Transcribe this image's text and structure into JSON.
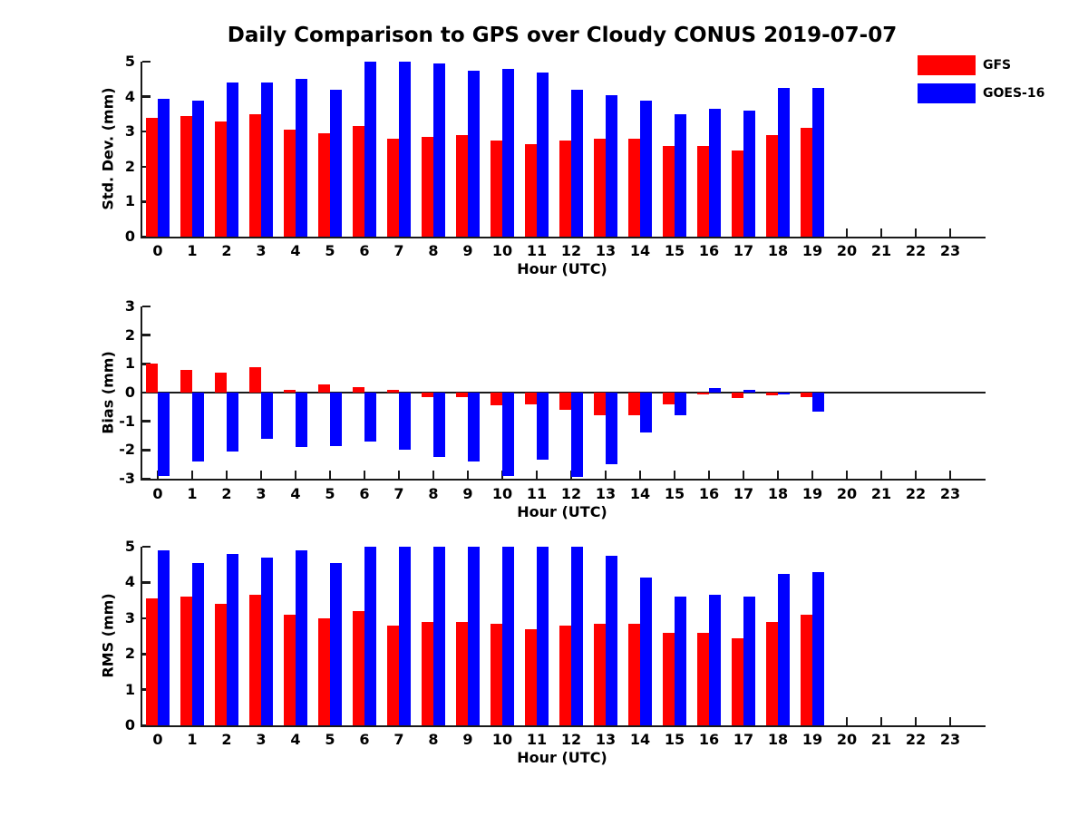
{
  "title": "Daily Comparison to GPS over Cloudy CONUS 2019-07-07",
  "xlabel": "Hour (UTC)",
  "legend": {
    "position": "top-right",
    "items": [
      {
        "label": "GFS",
        "color": "#ff0000"
      },
      {
        "label": "GOES-16",
        "color": "#0000ff"
      }
    ]
  },
  "colors": {
    "gfs": "#ff0000",
    "goes16": "#0000ff",
    "axis": "#191919"
  },
  "chart_data": [
    {
      "type": "bar",
      "ylabel": "Std. Dev. (mm)",
      "xlabel": "Hour (UTC)",
      "ylim": [
        0,
        5
      ],
      "yticks": [
        0,
        1,
        2,
        3,
        4,
        5
      ],
      "grid": false,
      "legend_position": "outside-top-right",
      "categories": [
        0,
        1,
        2,
        3,
        4,
        5,
        6,
        7,
        8,
        9,
        10,
        11,
        12,
        13,
        14,
        15,
        16,
        17,
        18,
        19,
        20,
        21,
        22,
        23
      ],
      "series": [
        {
          "name": "GFS",
          "color": "#ff0000",
          "values": [
            3.4,
            3.45,
            3.3,
            3.5,
            3.05,
            2.95,
            3.15,
            2.8,
            2.85,
            2.9,
            2.75,
            2.65,
            2.75,
            2.8,
            2.8,
            2.6,
            2.6,
            2.45,
            2.9,
            3.1,
            null,
            null,
            null,
            null
          ]
        },
        {
          "name": "GOES-16",
          "color": "#0000ff",
          "values": [
            3.95,
            3.9,
            4.4,
            4.4,
            4.5,
            4.2,
            5.0,
            5.0,
            4.95,
            4.75,
            4.8,
            4.7,
            4.2,
            4.05,
            3.9,
            3.5,
            3.65,
            3.6,
            4.25,
            4.25,
            null,
            null,
            null,
            null
          ]
        }
      ]
    },
    {
      "type": "bar",
      "ylabel": "Bias (mm)",
      "xlabel": "Hour (UTC)",
      "ylim": [
        -3,
        3
      ],
      "yticks": [
        3,
        2,
        1,
        0,
        -1,
        -2,
        -3
      ],
      "grid": false,
      "zero_line": true,
      "categories": [
        0,
        1,
        2,
        3,
        4,
        5,
        6,
        7,
        8,
        9,
        10,
        11,
        12,
        13,
        14,
        15,
        16,
        17,
        18,
        19,
        20,
        21,
        22,
        23
      ],
      "series": [
        {
          "name": "GFS",
          "color": "#ff0000",
          "values": [
            1.0,
            0.8,
            0.7,
            0.9,
            0.1,
            0.3,
            0.2,
            0.1,
            -0.15,
            -0.15,
            -0.45,
            -0.4,
            -0.6,
            -0.8,
            -0.8,
            -0.4,
            -0.05,
            -0.2,
            -0.1,
            -0.15,
            null,
            null,
            null,
            null
          ]
        },
        {
          "name": "GOES-16",
          "color": "#0000ff",
          "values": [
            -2.9,
            -2.4,
            -2.05,
            -1.6,
            -1.9,
            -1.85,
            -1.7,
            -2.0,
            -2.25,
            -2.4,
            -2.9,
            -2.35,
            -2.95,
            -2.5,
            -1.4,
            -0.8,
            0.15,
            0.1,
            -0.05,
            -0.65,
            null,
            null,
            null,
            null
          ]
        }
      ]
    },
    {
      "type": "bar",
      "ylabel": "RMS (mm)",
      "xlabel": "Hour (UTC)",
      "ylim": [
        0,
        5
      ],
      "yticks": [
        0,
        1,
        2,
        3,
        4,
        5
      ],
      "grid": false,
      "categories": [
        0,
        1,
        2,
        3,
        4,
        5,
        6,
        7,
        8,
        9,
        10,
        11,
        12,
        13,
        14,
        15,
        16,
        17,
        18,
        19,
        20,
        21,
        22,
        23
      ],
      "series": [
        {
          "name": "GFS",
          "color": "#ff0000",
          "values": [
            3.55,
            3.6,
            3.4,
            3.65,
            3.1,
            3.0,
            3.2,
            2.8,
            2.9,
            2.9,
            2.85,
            2.7,
            2.8,
            2.85,
            2.85,
            2.6,
            2.6,
            2.45,
            2.9,
            3.1,
            null,
            null,
            null,
            null
          ]
        },
        {
          "name": "GOES-16",
          "color": "#0000ff",
          "values": [
            4.9,
            4.55,
            4.8,
            4.7,
            4.9,
            4.55,
            5.0,
            5.0,
            5.0,
            5.0,
            5.0,
            5.0,
            5.0,
            4.75,
            4.15,
            3.6,
            3.65,
            3.6,
            4.25,
            4.3,
            null,
            null,
            null,
            null
          ]
        }
      ]
    }
  ]
}
